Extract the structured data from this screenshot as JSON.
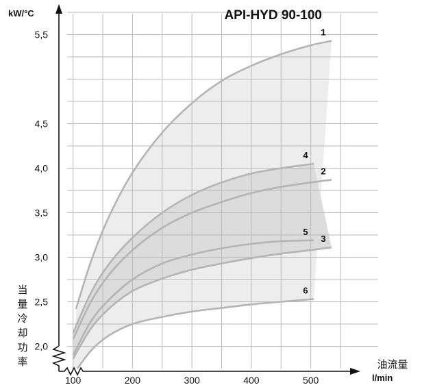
{
  "chart_data": {
    "type": "line",
    "title": "API-HYD 90-100",
    "ylabel_unit": "kW/°C",
    "ylabel": "当量冷却功率",
    "xlabel": "油流量",
    "xlabel_unit": "l/min",
    "xlim": [
      90,
      550
    ],
    "ylim": [
      1.75,
      5.75
    ],
    "x_ticks": [
      "100",
      "200",
      "300",
      "400",
      "500"
    ],
    "y_ticks": [
      "2,0",
      "2,5",
      "3,0",
      "3,5",
      "4,0",
      "4,5",
      "5,5"
    ],
    "grid": true,
    "axis_break": true,
    "bands": [
      {
        "from": "1",
        "to": "6",
        "shade": "#ededed"
      },
      {
        "from": "4",
        "to": "3",
        "shade": "#dcdcdc"
      }
    ],
    "series": [
      {
        "name": "1",
        "x": [
          105,
          130,
          160,
          200,
          250,
          300,
          350,
          400,
          450,
          500,
          535
        ],
        "y": [
          2.42,
          2.95,
          3.45,
          3.95,
          4.4,
          4.73,
          4.98,
          5.15,
          5.28,
          5.38,
          5.43
        ]
      },
      {
        "name": "4",
        "x": [
          100,
          130,
          160,
          200,
          250,
          300,
          350,
          400,
          450,
          505
        ],
        "y": [
          2.15,
          2.6,
          2.92,
          3.22,
          3.5,
          3.7,
          3.84,
          3.94,
          4.0,
          4.05
        ]
      },
      {
        "name": "2",
        "x": [
          100,
          130,
          160,
          200,
          250,
          300,
          350,
          400,
          450,
          500,
          535
        ],
        "y": [
          2.08,
          2.5,
          2.8,
          3.08,
          3.33,
          3.5,
          3.62,
          3.72,
          3.79,
          3.84,
          3.87
        ]
      },
      {
        "name": "5",
        "x": [
          100,
          130,
          160,
          200,
          250,
          300,
          350,
          400,
          450,
          505
        ],
        "y": [
          1.9,
          2.28,
          2.52,
          2.75,
          2.93,
          3.03,
          3.1,
          3.15,
          3.18,
          3.19
        ]
      },
      {
        "name": "3",
        "x": [
          100,
          130,
          160,
          200,
          250,
          300,
          350,
          400,
          450,
          500,
          535
        ],
        "y": [
          1.86,
          2.2,
          2.42,
          2.62,
          2.76,
          2.86,
          2.93,
          2.99,
          3.04,
          3.08,
          3.11
        ]
      },
      {
        "name": "6",
        "x": [
          100,
          130,
          160,
          200,
          250,
          300,
          350,
          400,
          450,
          505
        ],
        "y": [
          1.68,
          1.95,
          2.12,
          2.25,
          2.33,
          2.39,
          2.43,
          2.47,
          2.5,
          2.53
        ]
      }
    ],
    "colors": {
      "curve": "#b4b4b4",
      "grid": "#b9b9b9",
      "axis": "#111111"
    }
  }
}
